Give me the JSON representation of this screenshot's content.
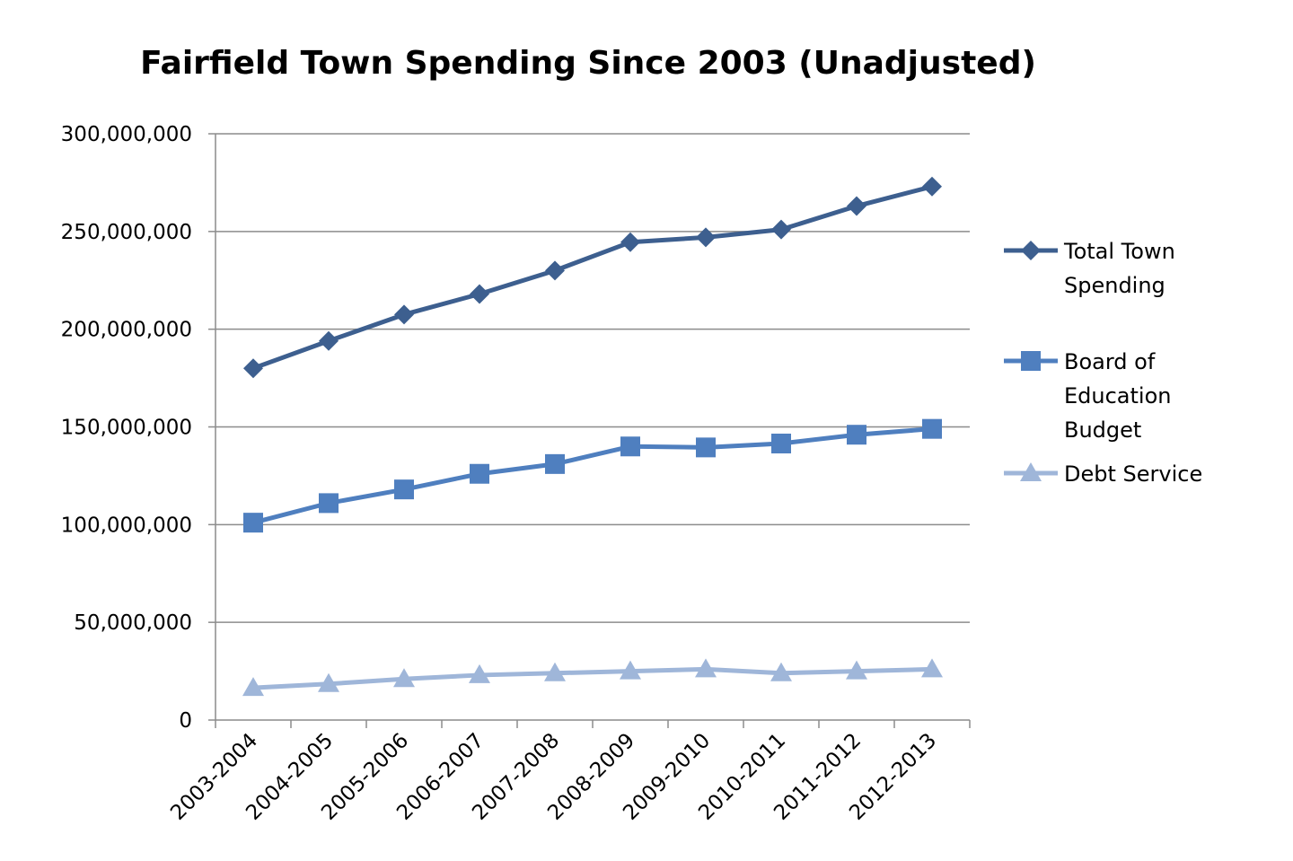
{
  "chart_data": {
    "type": "line",
    "title": "Fairfield Town Spending Since 2003 (Unadjusted)",
    "xlabel": "",
    "ylabel": "",
    "ylim": [
      0,
      300000000
    ],
    "yticks": [
      0,
      50000000,
      100000000,
      150000000,
      200000000,
      250000000,
      300000000
    ],
    "ytick_labels": [
      "0",
      "50,000,000",
      "100,000,000",
      "150,000,000",
      "200,000,000",
      "250,000,000",
      "300,000,000"
    ],
    "grid": true,
    "legend_position": "right",
    "categories": [
      "2003-2004",
      "2004-2005",
      "2005-2006",
      "2006-2007",
      "2007-2008",
      "2008-2009",
      "2009-2010",
      "2010-2011",
      "2011-2012",
      "2012-2013"
    ],
    "series": [
      {
        "name": "Total Town Spending",
        "legend_lines": [
          "Total Town",
          "Spending"
        ],
        "marker": "diamond",
        "color": "#3d5f8f",
        "values": [
          180000000,
          194000000,
          207500000,
          218000000,
          230000000,
          244500000,
          247000000,
          251000000,
          263000000,
          273000000
        ]
      },
      {
        "name": "Board of Education Budget",
        "legend_lines": [
          "Board of",
          "Education",
          "Budget"
        ],
        "marker": "square",
        "color": "#4f7fbf",
        "values": [
          101000000,
          111000000,
          118000000,
          126000000,
          131000000,
          140000000,
          139500000,
          141500000,
          146000000,
          149000000
        ]
      },
      {
        "name": "Debt Service",
        "legend_lines": [
          "Debt Service"
        ],
        "marker": "triangle",
        "color": "#9fb6d9",
        "values": [
          16500000,
          18500000,
          21000000,
          23000000,
          24000000,
          25000000,
          26000000,
          24000000,
          25000000,
          26000000
        ]
      }
    ]
  }
}
